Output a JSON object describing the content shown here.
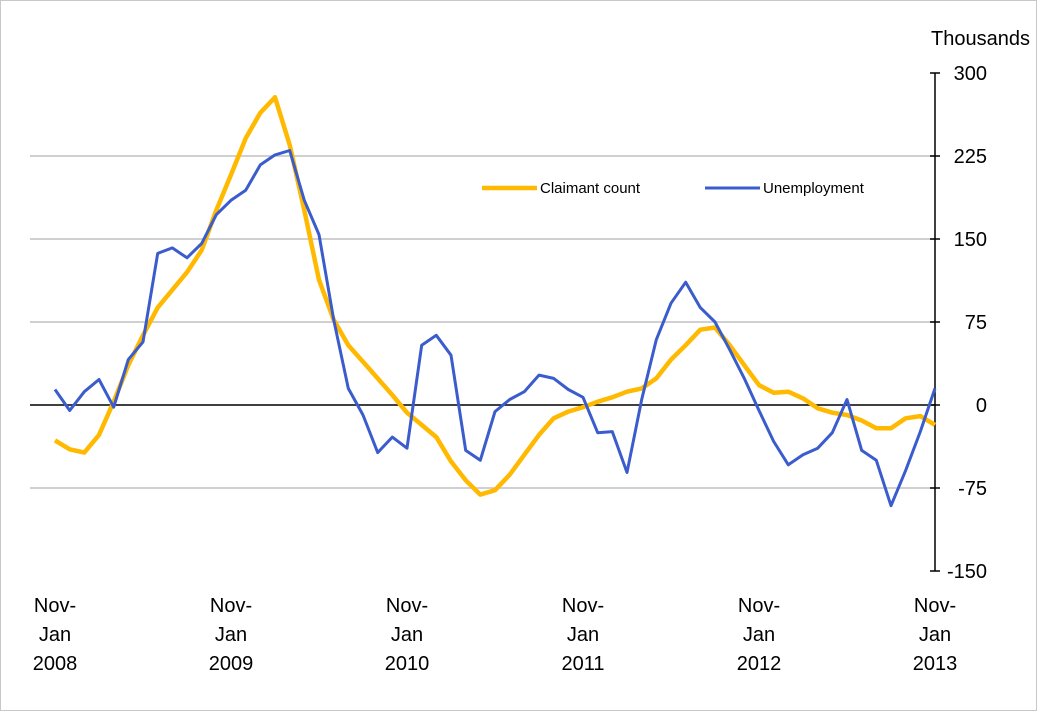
{
  "chart_data": {
    "type": "line",
    "y_axis_label": "Thousands",
    "categories": [
      "Nov-\nJan\n2008",
      null,
      null,
      null,
      null,
      null,
      null,
      null,
      null,
      null,
      null,
      null,
      "Nov-\nJan\n2009",
      null,
      null,
      null,
      null,
      null,
      null,
      null,
      null,
      null,
      null,
      null,
      "Nov-\nJan\n2010",
      null,
      null,
      null,
      null,
      null,
      null,
      null,
      null,
      null,
      null,
      null,
      "Nov-\nJan\n2011",
      null,
      null,
      null,
      null,
      null,
      null,
      null,
      null,
      null,
      null,
      null,
      "Nov-\nJan\n2012",
      null,
      null,
      null,
      null,
      null,
      null,
      null,
      null,
      null,
      null,
      null,
      "Nov-\nJan\n2013"
    ],
    "series": [
      {
        "name": "Claimant count",
        "color": "#ffb900",
        "values": [
          -32,
          -40,
          -43,
          -27,
          3,
          36,
          63,
          88,
          104,
          120,
          140,
          176,
          208,
          241,
          264,
          278,
          235,
          176,
          113,
          77,
          54,
          39,
          24,
          9,
          -7,
          -18,
          -29,
          -51,
          -68,
          -81,
          -77,
          -63,
          -45,
          -27,
          -12,
          -6,
          -2,
          3,
          7,
          12,
          15,
          24,
          41,
          54,
          68,
          70,
          54,
          36,
          18,
          11,
          12,
          6,
          -3,
          -7,
          -9,
          -14,
          -21,
          -21,
          -12,
          -10,
          -18
        ]
      },
      {
        "name": "Unemployment",
        "color": "#3a5ccc",
        "values": [
          14,
          -5,
          12,
          23,
          -2,
          41,
          57,
          137,
          142,
          133,
          146,
          172,
          185,
          194,
          217,
          226,
          230,
          185,
          154,
          77,
          15,
          -9,
          -43,
          -29,
          -39,
          54,
          63,
          45,
          -41,
          -50,
          -6,
          5,
          12,
          27,
          24,
          14,
          7,
          -25,
          -24,
          -61,
          5,
          59,
          92,
          111,
          88,
          75,
          50,
          24,
          -5,
          -33,
          -54,
          -45,
          -39,
          -25,
          5,
          -41,
          -50,
          -91,
          -59,
          -24,
          15
        ]
      }
    ],
    "ylim": [
      -150,
      300
    ],
    "yticks": [
      -150,
      -75,
      0,
      75,
      150,
      225,
      300
    ],
    "grid": true
  }
}
